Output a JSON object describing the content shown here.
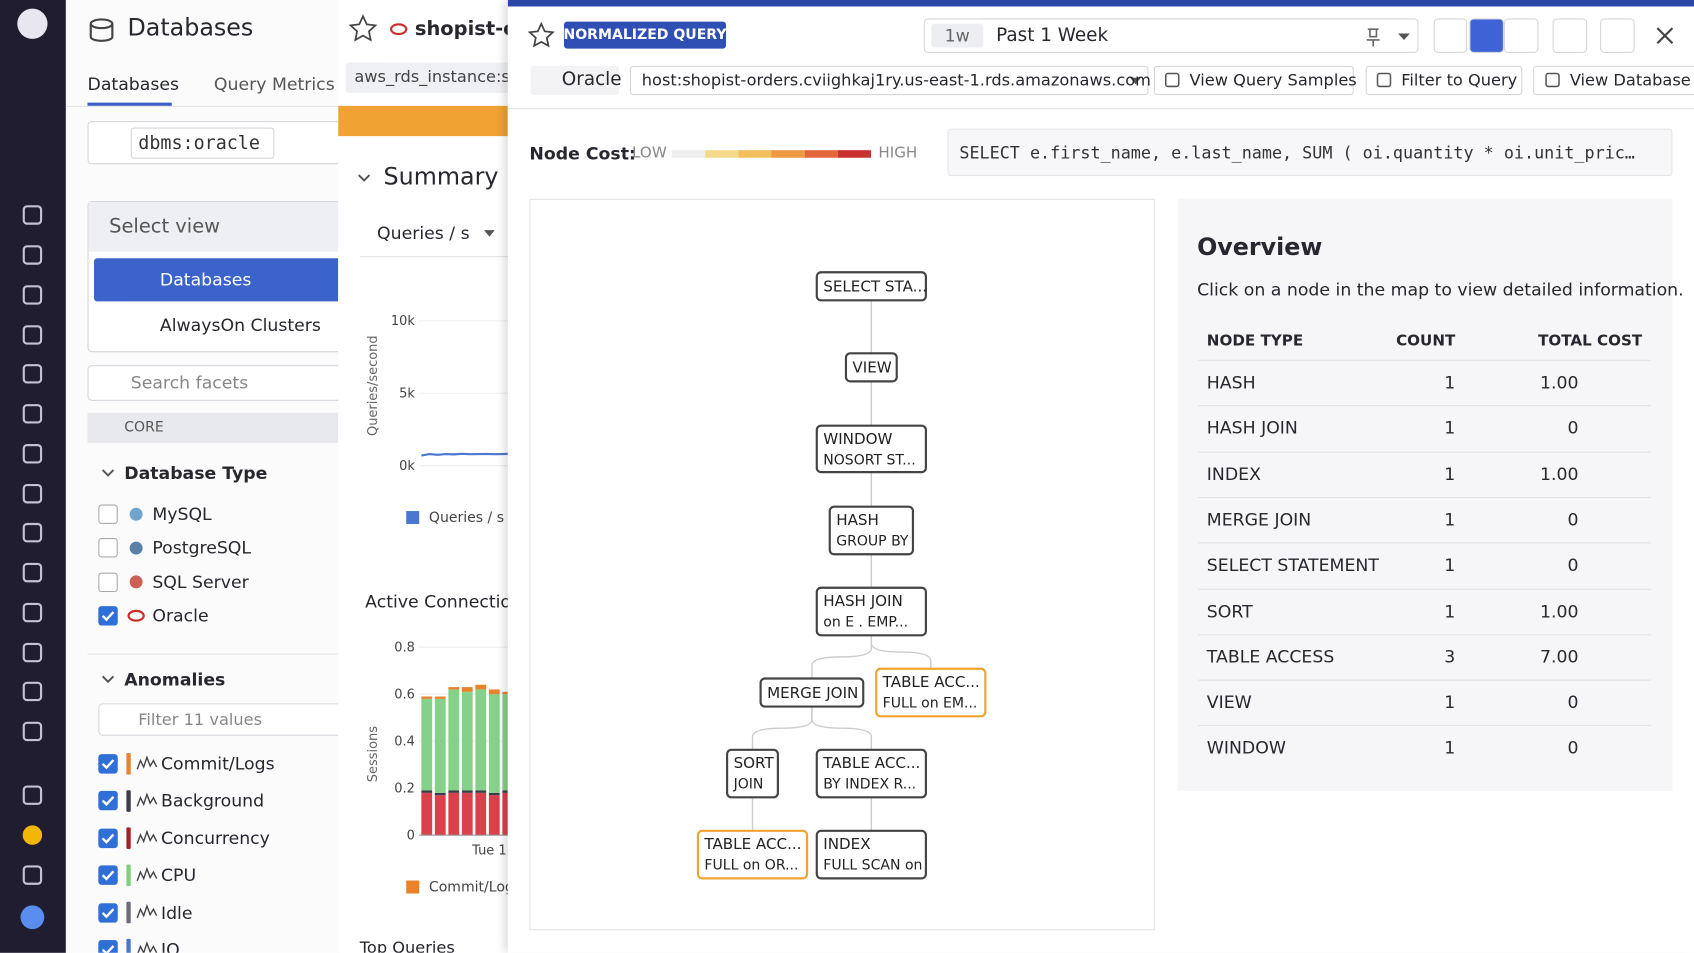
{
  "sidebar": {
    "title": "Databases",
    "tabs": [
      "Databases",
      "Query Metrics"
    ],
    "search": "dbms:oracle",
    "select_view": "Select view",
    "views": [
      "Databases",
      "AlwaysOn Clusters"
    ],
    "search_facets": "Search facets",
    "core": "CORE",
    "database_type": {
      "title": "Database Type",
      "options": [
        {
          "label": "MySQL",
          "checked": false
        },
        {
          "label": "PostgreSQL",
          "checked": false
        },
        {
          "label": "SQL Server",
          "checked": false
        },
        {
          "label": "Oracle",
          "checked": true
        }
      ]
    },
    "anomalies": {
      "title": "Anomalies",
      "filter": "Filter 11 values",
      "options": [
        {
          "label": "Commit/Logs",
          "checked": true,
          "color": "#e8822b"
        },
        {
          "label": "Background",
          "checked": true,
          "color": "#3c3c4a"
        },
        {
          "label": "Concurrency",
          "checked": true,
          "color": "#a3202a"
        },
        {
          "label": "CPU",
          "checked": true,
          "color": "#7fd17f"
        },
        {
          "label": "Idle",
          "checked": true,
          "color": "#6c6c78"
        },
        {
          "label": "IO",
          "checked": true,
          "color": "#4a78c8"
        }
      ]
    }
  },
  "instance": {
    "title": "shopist-o",
    "tag": "aws_rds_instance:s",
    "summary": "Summary",
    "metric": "Queries / s",
    "queries_chart": {
      "type": "line",
      "y_label": "Queries/second",
      "color": "#4a78d0",
      "ylim": [
        0,
        10000
      ],
      "yticks": [
        {
          "value": 0,
          "label": "0k"
        },
        {
          "value": 5000,
          "label": "5k"
        },
        {
          "value": 10000,
          "label": "10k"
        }
      ],
      "values": [
        700,
        800,
        750,
        800,
        780,
        820,
        790,
        800,
        810,
        790,
        800,
        820
      ],
      "legend": "Queries / s"
    },
    "sessions_chart": {
      "type": "stacked_bar",
      "title": "Active Connection",
      "y_label": "Sessions",
      "ylim": [
        0,
        0.8
      ],
      "yticks": [
        0,
        0.2,
        0.4,
        0.6,
        0.8
      ],
      "x_label": "Tue 1",
      "series": [
        {
          "color": "#d9414b",
          "values": [
            0.18,
            0.17,
            0.18,
            0.18,
            0.18,
            0.17,
            0.18
          ]
        },
        {
          "color": "#3c3c4a",
          "values": [
            0.01,
            0.01,
            0.01,
            0.01,
            0.01,
            0.01,
            0.01
          ]
        },
        {
          "color": "#86d18a",
          "values": [
            0.39,
            0.4,
            0.43,
            0.42,
            0.43,
            0.42,
            0.41
          ]
        },
        {
          "color": "#e8822b",
          "values": [
            0.01,
            0.01,
            0.01,
            0.02,
            0.02,
            0.02,
            0.01
          ]
        }
      ],
      "legend": "Commit/Log"
    },
    "top_queries": "Top Queries"
  },
  "query_panel": {
    "badge": "NORMALIZED QUERY",
    "time_short": "1w",
    "time_range": "Past 1 Week",
    "db": "Oracle",
    "host": "host:shopist-orders.cviighkaj1ry.us-east-1.rds.amazonaws.com",
    "buttons": [
      "View Query Samples",
      "Filter to Query",
      "View Database H"
    ],
    "node_cost": "Node Cost:",
    "low": "LOW",
    "high": "HIGH",
    "sql": "SELECT e.first_name, e.last_name, SUM ( oi.quantity * oi.unit_pric…",
    "plan": {
      "nodes": [
        {
          "lines": [
            "SELECT STA..."
          ]
        },
        {
          "lines": [
            "VIEW"
          ]
        },
        {
          "lines": [
            "WINDOW",
            "NOSORT ST..."
          ]
        },
        {
          "lines": [
            "HASH",
            "GROUP BY"
          ]
        },
        {
          "lines": [
            "HASH JOIN",
            "on E . EMP..."
          ]
        },
        {
          "lines": [
            "MERGE JOIN"
          ]
        },
        {
          "lines": [
            "TABLE ACC...",
            "FULL on EM..."
          ],
          "highlighted": true
        },
        {
          "lines": [
            "SORT",
            "JOIN"
          ]
        },
        {
          "lines": [
            "TABLE ACC...",
            "BY INDEX R..."
          ]
        },
        {
          "lines": [
            "TABLE ACC...",
            "FULL on OR..."
          ],
          "highlighted": true
        },
        {
          "lines": [
            "INDEX",
            "FULL SCAN on"
          ]
        }
      ]
    },
    "overview": {
      "title": "Overview",
      "description": "Click on a node in the map to view detailed information.",
      "columns": [
        "NODE TYPE",
        "COUNT",
        "TOTAL COST"
      ],
      "rows": [
        [
          "HASH",
          1,
          {
            "value": 1,
            "label": "1.00"
          }
        ],
        [
          "HASH JOIN",
          1,
          0
        ],
        [
          "INDEX",
          1,
          {
            "value": 1,
            "label": "1.00"
          }
        ],
        [
          "MERGE JOIN",
          1,
          0
        ],
        [
          "SELECT STATEMENT",
          1,
          0
        ],
        [
          "SORT",
          1,
          {
            "value": 1,
            "label": "1.00"
          }
        ],
        [
          "TABLE ACCESS",
          3,
          {
            "value": 7,
            "label": "7.00"
          }
        ],
        [
          "VIEW",
          1,
          0
        ],
        [
          "WINDOW",
          1,
          0
        ]
      ]
    }
  }
}
